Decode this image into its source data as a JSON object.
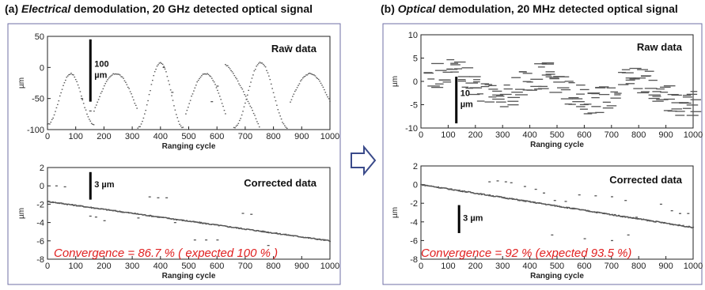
{
  "panels": [
    {
      "id": "a",
      "title": {
        "prefix": "(a)",
        "italic": "Electrical",
        "rest": " demodulation, 20 GHz detected optical signal"
      }
    },
    {
      "id": "b",
      "title": {
        "prefix": "(b)",
        "italic": "Optical",
        "rest": " demodulation, 20 MHz detected optical signal"
      }
    }
  ],
  "arrow": {
    "icon": "right-arrow-icon",
    "color": "#3a4a8a"
  },
  "chart_data": [
    {
      "id": "a-raw",
      "type": "scatter",
      "corner_label": "Raw data",
      "xlabel": "Ranging cycle",
      "ylabel": "µm",
      "xlim": [
        0,
        1000
      ],
      "ylim": [
        -100,
        50
      ],
      "xticks": [
        0,
        100,
        200,
        300,
        400,
        500,
        600,
        700,
        800,
        900,
        1000
      ],
      "yticks": [
        50,
        0,
        -50,
        -100
      ],
      "scale_bar": {
        "label": [
          "100",
          "µm"
        ],
        "x": 152,
        "y_from": -55,
        "y_to": 45
      },
      "segments": [
        {
          "shape": "sine",
          "x0": 0,
          "x1": 165,
          "ymin": -92,
          "ymax": -10,
          "phase": "rise"
        },
        {
          "shape": "arch",
          "x0": 165,
          "x1": 320,
          "peak": -10,
          "base": -70
        },
        {
          "shape": "sine",
          "x0": 320,
          "x1": 480,
          "ymin": -97,
          "ymax": 8,
          "phase": "v"
        },
        {
          "shape": "arch",
          "x0": 490,
          "x1": 630,
          "peak": -10,
          "base": -75
        },
        {
          "shape": "arch",
          "x0": 630,
          "x1": 750,
          "peak": 5,
          "base": -95,
          "descend": true
        },
        {
          "shape": "sine",
          "x0": 660,
          "x1": 850,
          "ymin": -97,
          "ymax": 8,
          "phase": "v2"
        },
        {
          "shape": "arch",
          "x0": 860,
          "x1": 1000,
          "peak": -10,
          "base": -55
        }
      ],
      "sparse": [
        [
          120,
          -50
        ],
        [
          150,
          -70
        ],
        [
          410,
          0
        ],
        [
          440,
          -40
        ],
        [
          580,
          -55
        ],
        [
          600,
          -30
        ],
        [
          850,
          35
        ]
      ]
    },
    {
      "id": "a-corrected",
      "type": "scatter",
      "corner_label": "Corrected data",
      "xlabel": "Ranging cycle",
      "ylabel": "µm",
      "xlim": [
        0,
        1000
      ],
      "ylim": [
        -8,
        2
      ],
      "xticks": [
        0,
        100,
        200,
        300,
        400,
        500,
        600,
        700,
        800,
        900,
        1000
      ],
      "yticks": [
        2,
        0,
        -2,
        -4,
        -6,
        -8
      ],
      "scale_bar": {
        "label": [
          "3 µm"
        ],
        "x": 152,
        "y_from": -1.5,
        "y_to": 1.5
      },
      "trend": {
        "x0": 0,
        "y0": -1.7,
        "x1": 1000,
        "y1": -6.0
      },
      "sparse": [
        [
          30,
          0
        ],
        [
          60,
          -0.1
        ],
        [
          150,
          -3.3
        ],
        [
          170,
          -3.4
        ],
        [
          200,
          -3.8
        ],
        [
          320,
          -3.5
        ],
        [
          360,
          -1.2
        ],
        [
          390,
          -1.3
        ],
        [
          420,
          -1.3
        ],
        [
          450,
          -4.0
        ],
        [
          690,
          -3.0
        ],
        [
          720,
          -3.1
        ],
        [
          780,
          -6.5
        ],
        [
          520,
          -5.9
        ],
        [
          560,
          -5.9
        ],
        [
          600,
          -5.9
        ]
      ],
      "annotation": "Convergence = 86.7 % ( expected 100 % )"
    },
    {
      "id": "b-raw",
      "type": "scatter",
      "corner_label": "Raw data",
      "xlabel": "Ranging cycle",
      "ylabel": "µm",
      "xlim": [
        0,
        1000
      ],
      "ylim": [
        -10,
        10
      ],
      "xticks": [
        0,
        100,
        200,
        300,
        400,
        500,
        600,
        700,
        800,
        900,
        1000
      ],
      "yticks": [
        10,
        5,
        0,
        -5,
        -10
      ],
      "scale_bar": {
        "label": [
          "10",
          "µm"
        ],
        "x": 130,
        "y_from": -9,
        "y_to": 1
      }
    },
    {
      "id": "b-corrected",
      "type": "scatter",
      "corner_label": "Corrected data",
      "xlabel": "Ranging cycle",
      "ylabel": "µm",
      "xlim": [
        0,
        1000
      ],
      "ylim": [
        -8,
        2
      ],
      "xticks": [
        0,
        100,
        200,
        300,
        400,
        500,
        600,
        700,
        800,
        900,
        1000
      ],
      "yticks": [
        2,
        0,
        -2,
        -4,
        -6,
        -8
      ],
      "scale_bar": {
        "label": [
          "3 µm"
        ],
        "x": 140,
        "y_from": -5.2,
        "y_to": -2.2
      },
      "trend": {
        "x0": 0,
        "y0": 0.0,
        "x1": 1000,
        "y1": -4.6
      },
      "sparse": [
        [
          250,
          0.3
        ],
        [
          280,
          0.4
        ],
        [
          310,
          0.3
        ],
        [
          330,
          0.2
        ],
        [
          380,
          -0.2
        ],
        [
          420,
          -0.5
        ],
        [
          450,
          -0.9
        ],
        [
          490,
          -1.7
        ],
        [
          530,
          -1.8
        ],
        [
          580,
          -1.1
        ],
        [
          640,
          -1.2
        ],
        [
          700,
          -1.3
        ],
        [
          750,
          -1.7
        ],
        [
          790,
          -3.5
        ],
        [
          840,
          -3.9
        ],
        [
          880,
          -2.1
        ],
        [
          920,
          -2.8
        ],
        [
          950,
          -3.1
        ],
        [
          980,
          -3.1
        ],
        [
          480,
          -5.4
        ],
        [
          600,
          -5.8
        ],
        [
          700,
          -6.0
        ],
        [
          760,
          -5.4
        ]
      ],
      "annotation": "Convergence = 92 % (expected 93.5 %)"
    }
  ]
}
